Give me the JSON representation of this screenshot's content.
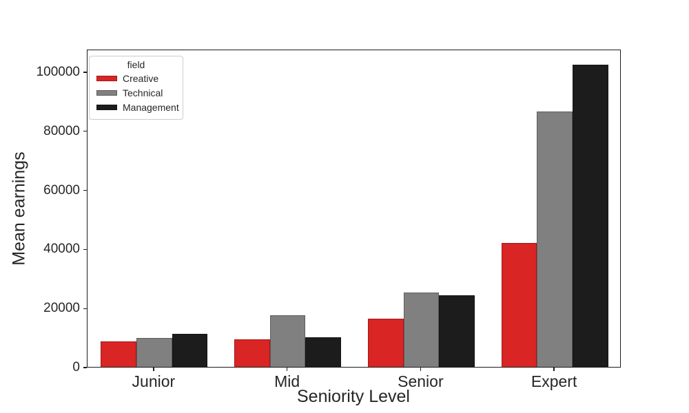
{
  "chart_data": {
    "type": "bar",
    "title": "",
    "xlabel": "Seniority Level",
    "ylabel": "Mean earnings",
    "categories": [
      "Junior",
      "Mid",
      "Senior",
      "Expert"
    ],
    "series": [
      {
        "name": "Creative",
        "color": "#d92523",
        "values": [
          8600,
          9300,
          16300,
          42000
        ]
      },
      {
        "name": "Technical",
        "color": "#808080",
        "values": [
          9900,
          17400,
          25200,
          86600
        ]
      },
      {
        "name": "Management",
        "color": "#1c1c1c",
        "values": [
          11100,
          10100,
          24200,
          102300
        ]
      }
    ],
    "legend_title": "field",
    "legend_position": "upper left",
    "ylim": [
      0,
      107700
    ],
    "yticks": [
      0,
      20000,
      40000,
      60000,
      80000,
      100000
    ],
    "grid": false,
    "background_color": "#ffffff",
    "text_color": "#262626",
    "spine_color": "#1a1a1a"
  }
}
